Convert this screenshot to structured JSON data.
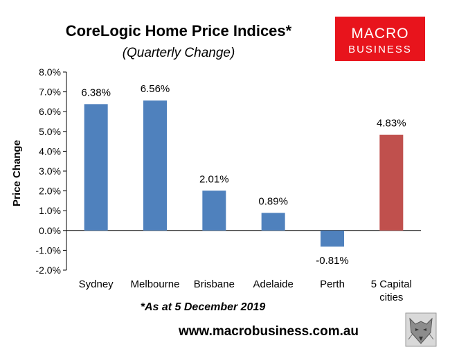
{
  "header": {
    "title": "CoreLogic Home Price Indices*",
    "subtitle": "(Quarterly Change)"
  },
  "logo": {
    "line1": "MACRO",
    "line2": "BUSINESS",
    "bg_color": "#e8141c"
  },
  "footer": {
    "note": "*As at 5 December 2019",
    "url": "www.macrobusiness.com.au",
    "wolf_icon": "wolf-logo-icon"
  },
  "chart_data": {
    "type": "bar",
    "categories": [
      "Sydney",
      "Melbourne",
      "Brisbane",
      "Adelaide",
      "Perth",
      "5 Capital cities"
    ],
    "category_lines": [
      [
        "Sydney"
      ],
      [
        "Melbourne"
      ],
      [
        "Brisbane"
      ],
      [
        "Adelaide"
      ],
      [
        "Perth"
      ],
      [
        "5 Capital",
        "cities"
      ]
    ],
    "values": [
      6.38,
      6.56,
      2.01,
      0.89,
      -0.81,
      4.83
    ],
    "data_labels": [
      "6.38%",
      "6.56%",
      "2.01%",
      "0.89%",
      "-0.81%",
      "4.83%"
    ],
    "bar_colors": [
      "#4f81bd",
      "#4f81bd",
      "#4f81bd",
      "#4f81bd",
      "#4f81bd",
      "#c0504d"
    ],
    "title": "CoreLogic Home Price Indices*",
    "xlabel": "",
    "ylabel": "Price Change",
    "ylim": [
      -2,
      8
    ],
    "yticks": [
      8,
      7,
      6,
      5,
      4,
      3,
      2,
      1,
      0,
      -1,
      -2
    ],
    "ytick_labels": [
      "8.0%",
      "7.0%",
      "6.0%",
      "5.0%",
      "4.0%",
      "3.0%",
      "2.0%",
      "1.0%",
      "0.0%",
      "-1.0%",
      "-2.0%"
    ],
    "grid": false,
    "legend": "none"
  }
}
